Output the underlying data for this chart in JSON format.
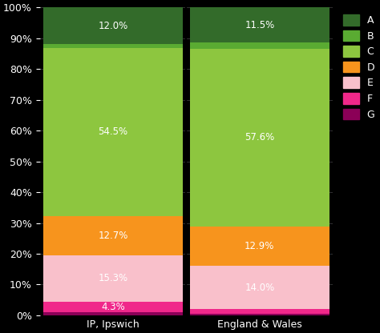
{
  "categories": [
    "IP, Ipswich",
    "England & Wales"
  ],
  "segments": [
    "G",
    "F",
    "E",
    "D",
    "C",
    "B",
    "A"
  ],
  "values": {
    "IP, Ipswich": [
      1.0,
      3.3,
      15.3,
      12.7,
      54.5,
      1.2,
      12.0
    ],
    "England & Wales": [
      0.5,
      1.5,
      14.0,
      12.9,
      57.6,
      2.0,
      11.5
    ]
  },
  "colors": {
    "A": "#336b2a",
    "B": "#5aab32",
    "C": "#8dc63f",
    "D": "#f7941d",
    "E": "#f9c0cb",
    "F": "#f0288a",
    "G": "#8b0057"
  },
  "labels": {
    "IP, Ipswich": {
      "C": "54.5%",
      "D": "12.7%",
      "E": "15.3%",
      "F": "4.3%",
      "A": "12.0%"
    },
    "England & Wales": {
      "C": "57.6%",
      "D": "12.9%",
      "E": "14.0%",
      "A": "11.5%"
    }
  },
  "background_color": "#000000",
  "text_color": "#ffffff",
  "bar_width": 0.95,
  "x_positions": [
    0.5,
    1.5
  ],
  "xlim": [
    0,
    2
  ],
  "ylim": [
    0,
    100
  ],
  "legend_order": [
    "A",
    "B",
    "C",
    "D",
    "E",
    "F",
    "G"
  ]
}
